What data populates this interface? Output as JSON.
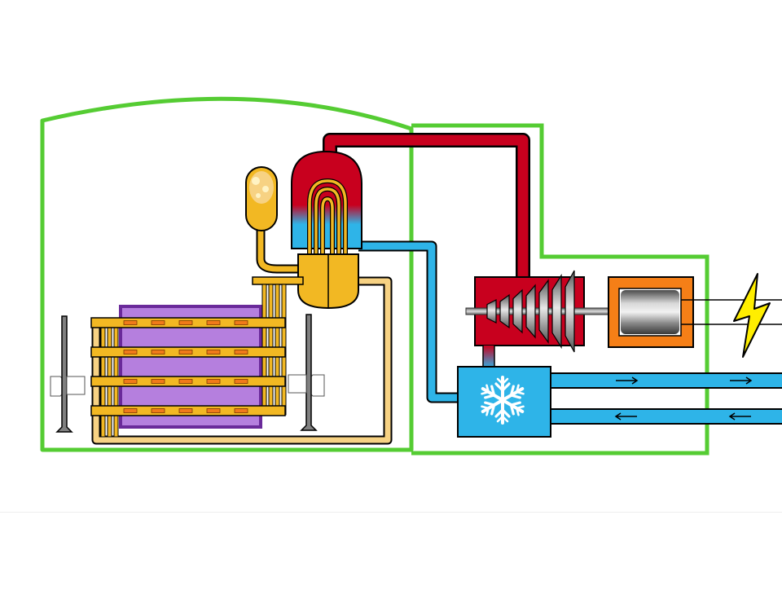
{
  "diagram": {
    "type": "pressurized heavy water reactor schematic",
    "components": [
      {
        "id": "containment-building",
        "icon": "containment-outline"
      },
      {
        "id": "turbine-hall",
        "icon": "building-outline"
      },
      {
        "id": "pressurizer",
        "icon": "pressurizer-tank"
      },
      {
        "id": "steam-generator",
        "icon": "steam-generator-vessel"
      },
      {
        "id": "calandria",
        "icon": "reactor-core"
      },
      {
        "id": "fuel-channels",
        "icon": "fuel-channel-tubes"
      },
      {
        "id": "fuelling-machines",
        "icon": "fuelling-machine"
      },
      {
        "id": "steam-turbine",
        "icon": "turbine"
      },
      {
        "id": "generator",
        "icon": "generator"
      },
      {
        "id": "condenser",
        "icon": "snowflake-icon"
      },
      {
        "id": "power-output",
        "icon": "lightning-bolt-icon"
      },
      {
        "id": "cooling-water",
        "icon": "flow-arrows"
      }
    ],
    "colors": {
      "building_outline": "#55cc33",
      "hot_steam": "#c8001e",
      "cold_water": "#2eb4e8",
      "heavy_water_loop": "#f2b823",
      "calandria": "#b57fde",
      "calandria_border": "#6a2a9a",
      "generator_housing": "#f57f17",
      "lightning": "#ffee00",
      "fuel_slot": "#f07a1a"
    }
  }
}
